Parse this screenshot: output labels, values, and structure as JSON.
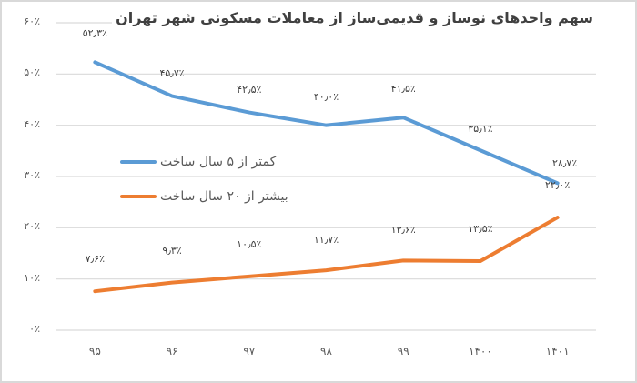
{
  "title": "سهم واحدهای نوساز و قدیمی‌ساز از معاملات مسکونی شهر تهران",
  "y_axis": {
    "ticks": [
      "۰٪",
      "۱۰٪",
      "۲۰٪",
      "۳۰٪",
      "۴۰٪",
      "۵۰٪",
      "۶۰٪"
    ]
  },
  "x_axis": {
    "ticks": [
      "۹۵",
      "۹۶",
      "۹۷",
      "۹۸",
      "۹۹",
      "۱۴۰۰",
      "۱۴۰۱"
    ]
  },
  "legend": {
    "items": [
      {
        "label": "کمتر از ۵ سال ساخت",
        "color": "#5b9bd5"
      },
      {
        "label": "بیشتر از ۲۰ سال ساخت",
        "color": "#ed7d31"
      }
    ]
  },
  "labels": {
    "new": [
      "۵۲٫۳٪",
      "۴۵٫۷٪",
      "۴۲٫۵٪",
      "۴۰٫۰٪",
      "۴۱٫۵٪",
      "۳۵٫۱٪",
      "۲۸٫۷٪"
    ],
    "old": [
      "۷٫۶٪",
      "۹٫۳٪",
      "۱۰٫۵٪",
      "۱۱٫۷٪",
      "۱۳٫۶٪",
      "۱۳٫۵٪",
      "۲۲٫۰٪"
    ]
  },
  "chart_data": {
    "type": "line",
    "title": "سهم واحدهای نوساز و قدیمی‌ساز از معاملات مسکونی شهر تهران",
    "categories": [
      "95",
      "96",
      "97",
      "98",
      "99",
      "1400",
      "1401"
    ],
    "series": [
      {
        "name": "کمتر از ۵ سال ساخت",
        "color": "#5b9bd5",
        "values": [
          52.3,
          45.7,
          42.5,
          40.0,
          41.5,
          35.1,
          28.7
        ]
      },
      {
        "name": "بیشتر از ۲۰ سال ساخت",
        "color": "#ed7d31",
        "values": [
          7.6,
          9.3,
          10.5,
          11.7,
          13.6,
          13.5,
          22.0
        ]
      }
    ],
    "xlabel": "",
    "ylabel": "",
    "ylim": [
      0,
      60
    ],
    "y_tick_step": 10,
    "y_format": "percent",
    "grid": "horizontal",
    "legend_position": "inside-left"
  }
}
